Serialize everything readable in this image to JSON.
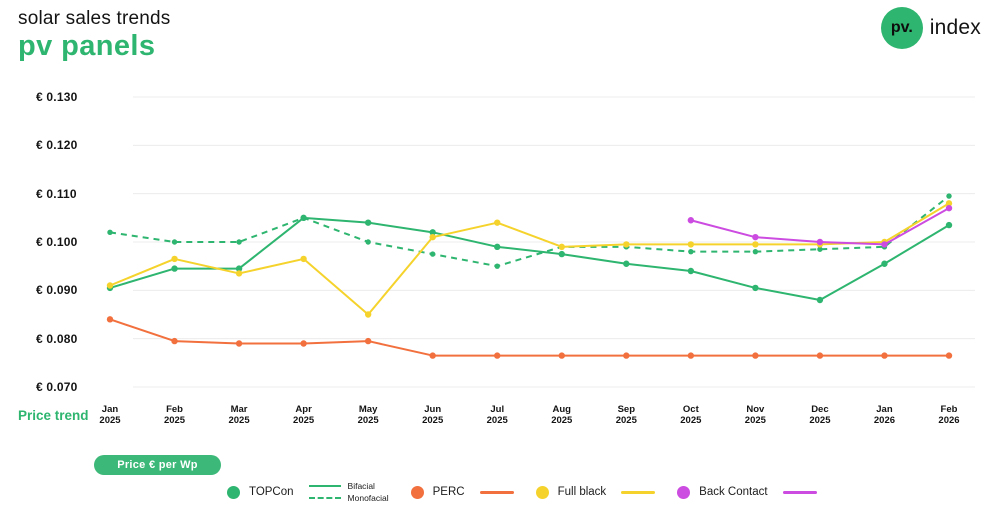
{
  "header": {
    "subtitle": "solar sales trends",
    "title": "pv panels"
  },
  "logo": {
    "badge": "pv.",
    "text": "index"
  },
  "side_label": "Price trend",
  "button": {
    "label": "Price € per Wp"
  },
  "colors": {
    "brand_green": "#2eb56f",
    "button_green": "#3cb878",
    "perc_orange": "#f2703e",
    "full_black_yellow": "#f5d32c",
    "back_contact_magenta": "#cc4be0",
    "grid": "#ececec",
    "text": "#141414"
  },
  "chart_data": {
    "type": "line",
    "title": "pv panels",
    "subtitle": "solar sales trends",
    "xlabel": "",
    "ylabel": "Price € per Wp",
    "grid": true,
    "legend_position": "bottom",
    "ylim": [
      0.07,
      0.13
    ],
    "y_ticks": [
      0.13,
      0.12,
      0.11,
      0.1,
      0.09,
      0.08,
      0.07
    ],
    "y_tick_labels": [
      "€ 0.130",
      "€ 0.120",
      "€ 0.110",
      "€ 0.100",
      "€ 0.090",
      "€ 0.080",
      "€ 0.070"
    ],
    "categories": [
      "Jan 2025",
      "Feb 2025",
      "Mar 2025",
      "Apr 2025",
      "May 2025",
      "Jun 2025",
      "Jul 2025",
      "Aug 2025",
      "Sep 2025",
      "Oct 2025",
      "Nov 2025",
      "Dec 2025",
      "Jan 2026",
      "Feb 2026"
    ],
    "series": [
      {
        "id": "topcon-bifacial",
        "name": "TOPCon Bifacial",
        "color": "#2eb56f",
        "style": "solid",
        "values": [
          0.0905,
          0.0945,
          0.0945,
          0.105,
          0.104,
          0.102,
          0.099,
          0.0975,
          0.0955,
          0.094,
          0.0905,
          0.088,
          0.0955,
          0.1035
        ]
      },
      {
        "id": "topcon-monofacial",
        "name": "TOPCon Monofacial",
        "color": "#2eb56f",
        "style": "dashed",
        "values": [
          0.102,
          0.1,
          0.1,
          0.105,
          0.1,
          0.0975,
          0.095,
          0.099,
          0.099,
          0.098,
          0.098,
          0.0985,
          0.099,
          0.1095
        ]
      },
      {
        "id": "perc",
        "name": "PERC",
        "color": "#f2703e",
        "style": "solid",
        "values": [
          0.084,
          0.0795,
          0.079,
          0.079,
          0.0795,
          0.0765,
          0.0765,
          0.0765,
          0.0765,
          0.0765,
          0.0765,
          0.0765,
          0.0765,
          0.0765
        ]
      },
      {
        "id": "full-black",
        "name": "Full black",
        "color": "#f5d32c",
        "style": "solid",
        "values": [
          0.091,
          0.0965,
          0.0935,
          0.0965,
          0.085,
          0.101,
          0.104,
          0.099,
          0.0995,
          0.0995,
          0.0995,
          0.0995,
          0.1,
          0.108
        ]
      },
      {
        "id": "back-contact",
        "name": "Back Contact",
        "color": "#cc4be0",
        "style": "solid",
        "values": [
          null,
          null,
          null,
          null,
          null,
          null,
          null,
          null,
          null,
          0.1045,
          0.101,
          0.1,
          0.0995,
          0.107
        ]
      }
    ]
  },
  "legend": {
    "topcon": {
      "label": "TOPCon",
      "color": "#2eb56f",
      "lines": [
        {
          "label": "Bifacial",
          "style": "solid"
        },
        {
          "label": "Monofacial",
          "style": "dashed"
        }
      ]
    },
    "perc": {
      "label": "PERC",
      "color": "#f2703e"
    },
    "full_black": {
      "label": "Full black",
      "color": "#f5d32c"
    },
    "back_contact": {
      "label": "Back Contact",
      "color": "#cc4be0"
    }
  }
}
